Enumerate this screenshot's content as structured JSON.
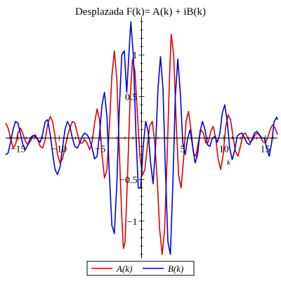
{
  "chart_data": {
    "type": "line",
    "title": "Desplazada F(k)= A(k) + iB(k)",
    "xlabel": "k",
    "ylabel": "",
    "xlim": [
      -16.5,
      16.5
    ],
    "ylim": [
      -1.45,
      1.45
    ],
    "x_ticks": [
      {
        "value": -15,
        "label": "−15"
      },
      {
        "value": -10,
        "label": "−10"
      },
      {
        "value": -5,
        "label": "−5"
      },
      {
        "value": 5,
        "label": "5"
      },
      {
        "value": 10,
        "label": "10"
      },
      {
        "value": 15,
        "label": "15"
      }
    ],
    "y_ticks": [
      {
        "value": 1,
        "label": "1"
      },
      {
        "value": 0.5,
        "label": "0.5"
      },
      {
        "value": -0.5,
        "label": "−0.5"
      },
      {
        "value": -1,
        "label": "−1"
      }
    ],
    "legend_position": "bottom-center",
    "series": [
      {
        "name": "A(k)",
        "color": "#e00000",
        "points": [
          [
            -16.5,
            0.18
          ],
          [
            -16.2,
            0.12
          ],
          [
            -15.9,
            0.0
          ],
          [
            -15.6,
            -0.12
          ],
          [
            -15.3,
            -0.08
          ],
          [
            -15.0,
            0.06
          ],
          [
            -14.7,
            0.12
          ],
          [
            -14.4,
            0.05
          ],
          [
            -14.1,
            -0.04
          ],
          [
            -13.8,
            -0.08
          ],
          [
            -13.5,
            -0.04
          ],
          [
            -13.2,
            0.02
          ],
          [
            -12.9,
            0.04
          ],
          [
            -12.6,
            -0.02
          ],
          [
            -12.3,
            -0.1
          ],
          [
            -12.0,
            -0.12
          ],
          [
            -11.7,
            -0.02
          ],
          [
            -11.4,
            0.16
          ],
          [
            -11.1,
            0.26
          ],
          [
            -10.8,
            0.2
          ],
          [
            -10.5,
            0.02
          ],
          [
            -10.2,
            -0.2
          ],
          [
            -9.9,
            -0.3
          ],
          [
            -9.6,
            -0.25
          ],
          [
            -9.3,
            -0.12
          ],
          [
            -9.0,
            0.02
          ],
          [
            -8.7,
            0.12
          ],
          [
            -8.4,
            0.2
          ],
          [
            -8.1,
            0.18
          ],
          [
            -7.8,
            0.06
          ],
          [
            -7.5,
            -0.06
          ],
          [
            -7.2,
            -0.06
          ],
          [
            -6.9,
            -0.02
          ],
          [
            -6.6,
            -0.06
          ],
          [
            -6.3,
            -0.14
          ],
          [
            -6.0,
            -0.05
          ],
          [
            -5.7,
            0.18
          ],
          [
            -5.4,
            0.35
          ],
          [
            -5.1,
            0.22
          ],
          [
            -4.8,
            -0.2
          ],
          [
            -4.5,
            -0.48
          ],
          [
            -4.2,
            -0.38
          ],
          [
            -3.9,
            0.15
          ],
          [
            -3.6,
            0.75
          ],
          [
            -3.3,
            1.05
          ],
          [
            -3.0,
            0.7
          ],
          [
            -2.7,
            -0.15
          ],
          [
            -2.4,
            -0.95
          ],
          [
            -2.2,
            -1.33
          ],
          [
            -2.0,
            -1.25
          ],
          [
            -1.7,
            -0.45
          ],
          [
            -1.4,
            0.45
          ],
          [
            -1.1,
            0.95
          ],
          [
            -0.8,
            0.8
          ],
          [
            -0.5,
            0.28
          ],
          [
            -0.2,
            -0.22
          ],
          [
            0.1,
            -0.45
          ],
          [
            0.4,
            -0.38
          ],
          [
            0.7,
            -0.1
          ],
          [
            1.0,
            0.15
          ],
          [
            1.3,
            0.2
          ],
          [
            1.6,
            -0.05
          ],
          [
            1.9,
            -0.5
          ],
          [
            2.2,
            -1.1
          ],
          [
            2.5,
            -1.4
          ],
          [
            2.8,
            -1.1
          ],
          [
            3.1,
            -0.25
          ],
          [
            3.4,
            0.75
          ],
          [
            3.6,
            1.25
          ],
          [
            3.9,
            1.0
          ],
          [
            4.2,
            0.2
          ],
          [
            4.5,
            -0.45
          ],
          [
            4.8,
            -0.6
          ],
          [
            5.1,
            -0.25
          ],
          [
            5.4,
            0.2
          ],
          [
            5.7,
            0.32
          ],
          [
            6.0,
            0.1
          ],
          [
            6.3,
            -0.18
          ],
          [
            6.6,
            -0.22
          ],
          [
            6.9,
            -0.05
          ],
          [
            7.2,
            0.1
          ],
          [
            7.5,
            0.06
          ],
          [
            7.8,
            -0.06
          ],
          [
            8.1,
            -0.05
          ],
          [
            8.4,
            0.08
          ],
          [
            8.7,
            0.14
          ],
          [
            9.0,
            0.0
          ],
          [
            9.3,
            -0.25
          ],
          [
            9.6,
            -0.38
          ],
          [
            9.9,
            -0.2
          ],
          [
            10.2,
            0.12
          ],
          [
            10.5,
            0.28
          ],
          [
            10.8,
            0.22
          ],
          [
            11.1,
            0.02
          ],
          [
            11.4,
            -0.16
          ],
          [
            11.7,
            -0.22
          ],
          [
            12.0,
            -0.1
          ],
          [
            12.3,
            0.04
          ],
          [
            12.6,
            0.06
          ],
          [
            12.9,
            0.0
          ],
          [
            13.2,
            -0.05
          ],
          [
            13.5,
            -0.02
          ],
          [
            13.8,
            0.04
          ],
          [
            14.1,
            0.06
          ],
          [
            14.4,
            0.02
          ],
          [
            14.7,
            -0.04
          ],
          [
            15.0,
            -0.06
          ],
          [
            15.3,
            0.0
          ],
          [
            15.6,
            0.1
          ],
          [
            15.9,
            0.16
          ],
          [
            16.2,
            0.12
          ],
          [
            16.5,
            0.04
          ]
        ]
      },
      {
        "name": "B(k)",
        "color": "#0000e0",
        "points": [
          [
            -16.5,
            -0.2
          ],
          [
            -16.2,
            -0.18
          ],
          [
            -15.9,
            -0.05
          ],
          [
            -15.6,
            0.1
          ],
          [
            -15.3,
            0.2
          ],
          [
            -15.0,
            0.18
          ],
          [
            -14.7,
            0.05
          ],
          [
            -14.4,
            -0.08
          ],
          [
            -14.1,
            -0.14
          ],
          [
            -13.8,
            -0.08
          ],
          [
            -13.5,
            0.0
          ],
          [
            -13.2,
            0.03
          ],
          [
            -12.9,
            0.02
          ],
          [
            -12.6,
            -0.02
          ],
          [
            -12.3,
            -0.05
          ],
          [
            -12.0,
            0.05
          ],
          [
            -11.7,
            0.2
          ],
          [
            -11.4,
            0.22
          ],
          [
            -11.1,
            0.05
          ],
          [
            -10.8,
            -0.18
          ],
          [
            -10.5,
            -0.38
          ],
          [
            -10.2,
            -0.44
          ],
          [
            -9.9,
            -0.35
          ],
          [
            -9.6,
            -0.12
          ],
          [
            -9.3,
            0.1
          ],
          [
            -9.0,
            0.2
          ],
          [
            -8.7,
            0.14
          ],
          [
            -8.4,
            0.0
          ],
          [
            -8.1,
            -0.1
          ],
          [
            -7.8,
            -0.12
          ],
          [
            -7.5,
            -0.06
          ],
          [
            -7.2,
            0.02
          ],
          [
            -6.9,
            0.06
          ],
          [
            -6.6,
            0.04
          ],
          [
            -6.3,
            -0.02
          ],
          [
            -6.0,
            -0.12
          ],
          [
            -5.7,
            -0.25
          ],
          [
            -5.4,
            -0.22
          ],
          [
            -5.1,
            0.05
          ],
          [
            -4.8,
            0.4
          ],
          [
            -4.5,
            0.55
          ],
          [
            -4.2,
            0.25
          ],
          [
            -3.9,
            -0.45
          ],
          [
            -3.6,
            -1.05
          ],
          [
            -3.3,
            -1.15
          ],
          [
            -3.0,
            -0.55
          ],
          [
            -2.7,
            0.35
          ],
          [
            -2.4,
            1.0
          ],
          [
            -2.1,
            1.05
          ],
          [
            -1.8,
            0.55
          ],
          [
            -1.6,
            0.9
          ],
          [
            -1.3,
            1.4
          ],
          [
            -1.0,
            1.0
          ],
          [
            -0.7,
            0.1
          ],
          [
            -0.4,
            -0.6
          ],
          [
            -0.1,
            -0.6
          ],
          [
            0.2,
            -0.1
          ],
          [
            0.5,
            0.2
          ],
          [
            0.8,
            0.08
          ],
          [
            1.1,
            -0.3
          ],
          [
            1.4,
            -0.55
          ],
          [
            1.7,
            -0.1
          ],
          [
            2.0,
            0.6
          ],
          [
            2.3,
            0.98
          ],
          [
            2.6,
            0.6
          ],
          [
            2.9,
            -0.4
          ],
          [
            3.2,
            -1.25
          ],
          [
            3.5,
            -1.4
          ],
          [
            3.8,
            -0.55
          ],
          [
            4.1,
            0.5
          ],
          [
            4.4,
            0.95
          ],
          [
            4.7,
            0.55
          ],
          [
            5.0,
            -0.05
          ],
          [
            5.3,
            -0.2
          ],
          [
            5.6,
            0.0
          ],
          [
            5.9,
            0.1
          ],
          [
            6.2,
            -0.1
          ],
          [
            6.5,
            -0.3
          ],
          [
            6.8,
            -0.2
          ],
          [
            7.1,
            0.08
          ],
          [
            7.4,
            0.2
          ],
          [
            7.7,
            0.1
          ],
          [
            8.0,
            -0.08
          ],
          [
            8.3,
            -0.1
          ],
          [
            8.6,
            0.0
          ],
          [
            8.9,
            0.02
          ],
          [
            9.2,
            -0.05
          ],
          [
            9.5,
            0.05
          ],
          [
            9.8,
            0.3
          ],
          [
            10.1,
            0.4
          ],
          [
            10.4,
            0.2
          ],
          [
            10.7,
            -0.12
          ],
          [
            11.0,
            -0.26
          ],
          [
            11.3,
            -0.15
          ],
          [
            11.6,
            0.02
          ],
          [
            11.9,
            0.05
          ],
          [
            12.2,
            0.06
          ],
          [
            12.5,
            0.0
          ],
          [
            12.8,
            -0.06
          ],
          [
            13.1,
            -0.08
          ],
          [
            13.4,
            -0.02
          ],
          [
            13.7,
            0.06
          ],
          [
            14.0,
            0.08
          ],
          [
            14.3,
            0.04
          ],
          [
            14.6,
            0.0
          ],
          [
            14.9,
            0.0
          ],
          [
            15.2,
            -0.12
          ],
          [
            15.5,
            -0.22
          ],
          [
            15.8,
            -0.05
          ],
          [
            16.1,
            0.2
          ],
          [
            16.4,
            0.25
          ],
          [
            16.5,
            0.22
          ]
        ]
      }
    ]
  }
}
